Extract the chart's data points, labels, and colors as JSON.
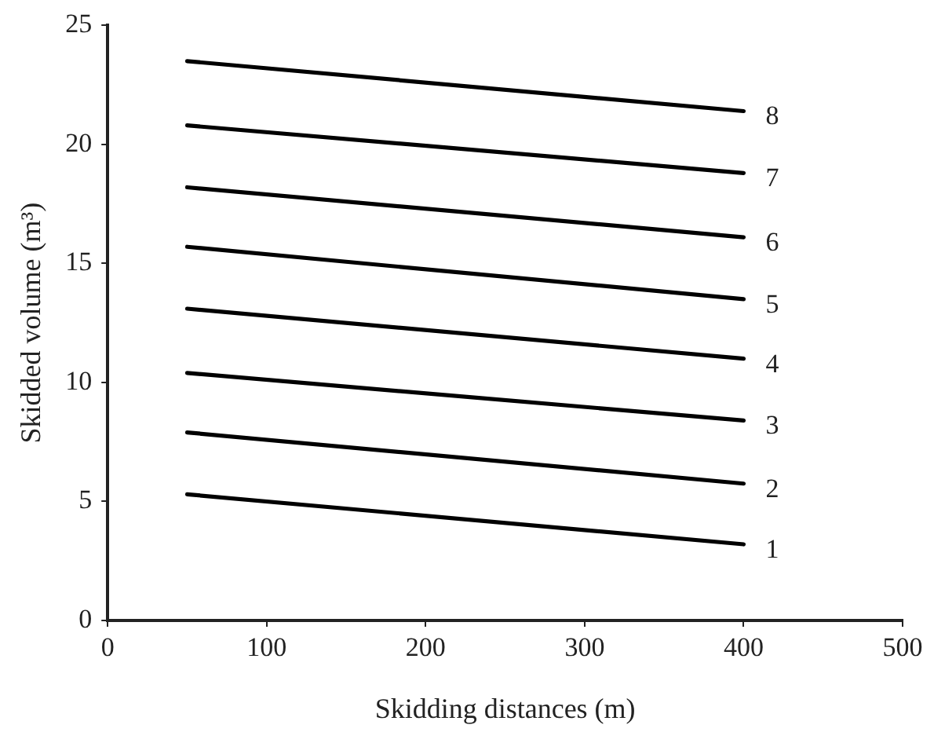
{
  "chart_data": {
    "type": "line",
    "xlabel": "Skidding distances (m)",
    "ylabel": "Skidded volume (m³)",
    "x": [
      50,
      400
    ],
    "series": [
      {
        "name": "1",
        "color": "#000000",
        "values": [
          5.3,
          3.2
        ]
      },
      {
        "name": "2",
        "color": "#000000",
        "values": [
          7.9,
          5.75
        ]
      },
      {
        "name": "3",
        "color": "#000000",
        "values": [
          10.4,
          8.4
        ]
      },
      {
        "name": "4",
        "color": "#000000",
        "values": [
          13.1,
          11.0
        ]
      },
      {
        "name": "5",
        "color": "#000000",
        "values": [
          15.7,
          13.5
        ]
      },
      {
        "name": "6",
        "color": "#000000",
        "values": [
          18.2,
          16.1
        ]
      },
      {
        "name": "7",
        "color": "#000000",
        "values": [
          20.8,
          18.8
        ]
      },
      {
        "name": "8",
        "color": "#000000",
        "values": [
          23.5,
          21.4
        ]
      }
    ],
    "xlim": [
      0,
      500
    ],
    "xticks": [
      0,
      100,
      200,
      300,
      400,
      500
    ],
    "ylim": [
      0,
      25
    ],
    "yticks": [
      0,
      5,
      10,
      15,
      20,
      25
    ],
    "grid": false,
    "legend": false,
    "marker": "none",
    "line_style": "solid"
  }
}
